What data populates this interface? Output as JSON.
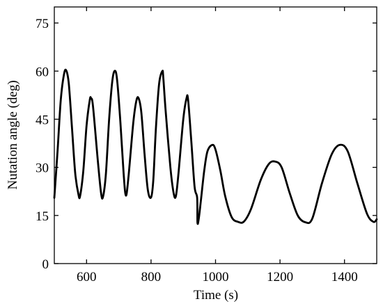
{
  "chart_data": {
    "type": "line",
    "title": "",
    "xlabel": "Time (s)",
    "ylabel": "Nutation angle (deg)",
    "xlim": [
      500,
      1500
    ],
    "ylim": [
      0,
      80
    ],
    "x_ticks": [
      600,
      800,
      1000,
      1200,
      1400
    ],
    "y_ticks": [
      0,
      15,
      30,
      45,
      60,
      75
    ],
    "x_tick_labels": [
      "600",
      "800",
      "1000",
      "1200",
      "1400"
    ],
    "y_tick_labels": [
      "0",
      "15",
      "30",
      "45",
      "60",
      "75"
    ],
    "grid": false,
    "legend": "none",
    "series": [
      {
        "x": [
          500,
          510,
          520,
          530,
          537,
          545,
          555,
          565,
          575,
          580,
          590,
          600,
          610,
          614,
          620,
          635,
          645,
          651,
          660,
          670,
          680,
          688,
          695,
          705,
          715,
          722,
          730,
          745,
          755,
          762,
          770,
          780,
          790,
          800,
          807,
          815,
          825,
          835,
          838,
          845,
          860,
          870,
          877,
          885,
          900,
          910,
          915,
          925,
          935,
          943,
          944,
          948,
          955,
          965,
          975,
          990,
          1000,
          1015,
          1030,
          1050,
          1070,
          1088,
          1110,
          1140,
          1165,
          1185,
          1205,
          1230,
          1255,
          1278,
          1300,
          1330,
          1360,
          1385,
          1410,
          1440,
          1470,
          1490,
          1500
        ],
        "y": [
          20.5,
          35,
          51,
          59,
          60.2,
          56,
          42,
          28,
          21.5,
          21.1,
          29,
          43,
          51,
          51.5,
          49,
          32,
          22,
          20.8,
          28,
          45,
          57,
          60.1,
          57,
          44,
          28,
          21.2,
          27,
          44,
          51,
          51.4,
          47,
          34,
          23,
          20.6,
          26,
          42,
          56,
          60,
          58,
          48,
          30,
          22,
          21,
          28,
          45,
          51.5,
          51,
          38,
          24,
          20.5,
          12.8,
          14,
          20,
          29,
          35,
          37,
          35.5,
          29,
          21,
          14.5,
          13,
          13.1,
          17,
          26,
          31,
          31.8,
          30,
          22,
          15,
          12.9,
          14,
          25,
          34,
          37,
          35,
          25,
          15.5,
          13,
          13.8
        ]
      }
    ]
  }
}
